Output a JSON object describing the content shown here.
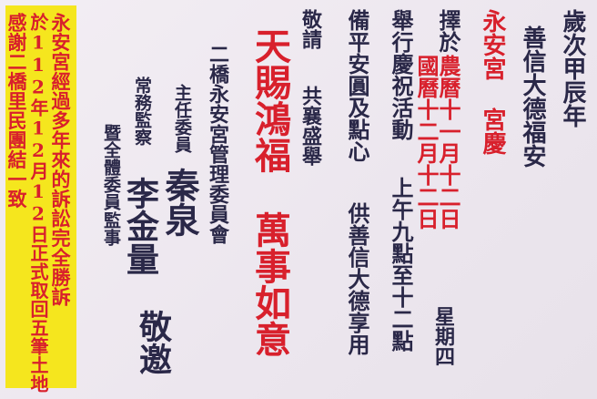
{
  "notice": {
    "lines": [
      "永安宮經過多年來的訴訟完全勝訴",
      "於112年12月12日正式取回五筆土地",
      "感謝二橋里民團結一致"
    ]
  },
  "greeting": {
    "year_line": "歲次甲辰年",
    "blessing_line": "善信大德福安"
  },
  "event": {
    "temple_title": "永安宮 宮慶",
    "date_prefix": "擇於",
    "lunar_date": "農曆十一月十二日",
    "gregorian_date": "國曆十二月十二日",
    "weekday": "星期四",
    "line_activity": "舉行慶祝活動",
    "time": "上午九點至十二點",
    "line_offer": "備平安圓及點心",
    "offer_target": "供善信大德享用",
    "line_invite": "敬請",
    "line_join": "共襄盛舉"
  },
  "blessings": {
    "left_phrase": "天賜鴻福",
    "right_phrase": "萬事如意"
  },
  "signatures": {
    "committee": "二橋永安宮管理委員會",
    "chair_title": "主任委員",
    "chair_name": "秦泉",
    "supervisor_title": "常務監察",
    "supervisor_name": "李金量",
    "members": "暨全體委員",
    "auditor": "監事",
    "closing": "敬邀"
  },
  "colors": {
    "red": "#d8202c",
    "dark": "#2a2848",
    "yellow": "#f5e61e"
  }
}
